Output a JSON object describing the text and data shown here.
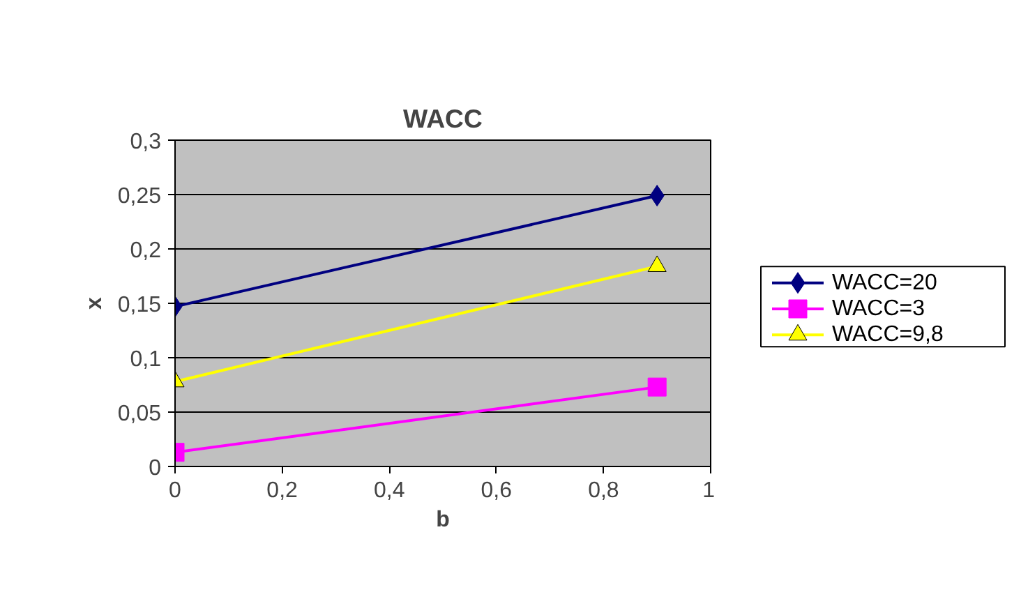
{
  "chart_data": {
    "type": "line",
    "title": "WACC",
    "xlabel": "b",
    "ylabel": "x",
    "x": [
      0,
      0.9
    ],
    "series": [
      {
        "name": "WACC=20",
        "color": "#000080",
        "marker": "diamond",
        "values": [
          0.147,
          0.249
        ]
      },
      {
        "name": "WACC=3",
        "color": "#ff00ff",
        "marker": "square",
        "values": [
          0.013,
          0.073
        ]
      },
      {
        "name": "WACC=9,8",
        "color": "#ffff00",
        "marker": "triangle",
        "values": [
          0.078,
          0.184
        ]
      }
    ],
    "xlim": [
      0,
      1
    ],
    "xticks": [
      {
        "value": 0,
        "label": "0"
      },
      {
        "value": 0.2,
        "label": "0,2"
      },
      {
        "value": 0.4,
        "label": "0,4"
      },
      {
        "value": 0.6,
        "label": "0,6"
      },
      {
        "value": 0.8,
        "label": "0,8"
      },
      {
        "value": 1,
        "label": "1"
      }
    ],
    "ylim": [
      0,
      0.3
    ],
    "yticks": [
      {
        "value": 0,
        "label": "0"
      },
      {
        "value": 0.05,
        "label": "0,05"
      },
      {
        "value": 0.1,
        "label": "0,1"
      },
      {
        "value": 0.15,
        "label": "0,15"
      },
      {
        "value": 0.2,
        "label": "0,2"
      },
      {
        "value": 0.25,
        "label": "0,25"
      },
      {
        "value": 0.3,
        "label": "0,3"
      }
    ],
    "grid": "y",
    "legend": "right",
    "line_style": "solid"
  }
}
